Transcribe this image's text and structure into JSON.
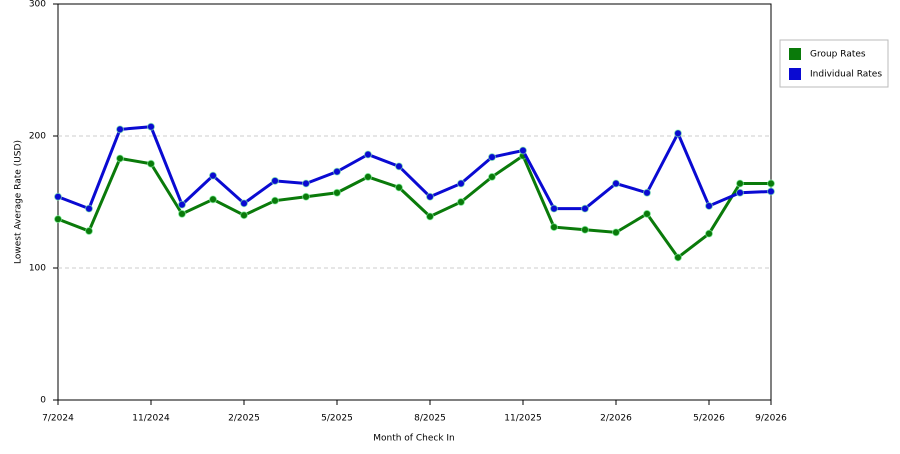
{
  "chart_data": {
    "type": "line",
    "x_label": "Month of Check In",
    "y_label": "Lowest Average Rate (USD)",
    "categories": [
      "7/2024",
      null,
      null,
      "11/2024",
      null,
      null,
      "2/2025",
      null,
      null,
      "5/2025",
      null,
      null,
      "8/2025",
      null,
      null,
      "11/2025",
      null,
      null,
      "2/2026",
      null,
      null,
      "5/2026",
      null,
      "9/2026"
    ],
    "series": [
      {
        "name": "Group Rates",
        "color": "#0a7a0a",
        "values": [
          137,
          128,
          183,
          179,
          141,
          152,
          140,
          151,
          154,
          157,
          169,
          161,
          139,
          150,
          169,
          185,
          131,
          129,
          127,
          141,
          108,
          126,
          164,
          164
        ]
      },
      {
        "name": "Individual Rates",
        "color": "#0a0ad2",
        "values": [
          154,
          145,
          205,
          207,
          148,
          170,
          149,
          166,
          164,
          173,
          186,
          177,
          154,
          164,
          184,
          189,
          145,
          145,
          164,
          157,
          202,
          147,
          157,
          158
        ]
      }
    ],
    "ylim": [
      0,
      300
    ],
    "yticks": [
      0,
      100,
      200,
      300
    ],
    "grid": true,
    "legend": "right"
  }
}
